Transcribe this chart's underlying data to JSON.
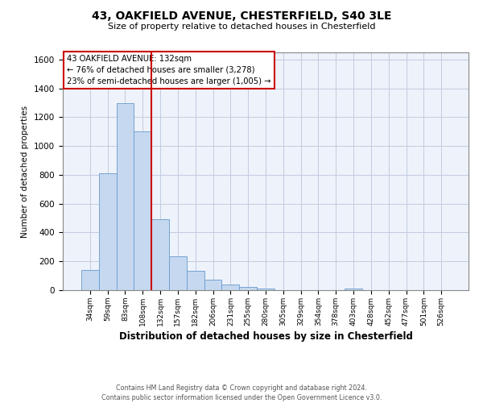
{
  "title": "43, OAKFIELD AVENUE, CHESTERFIELD, S40 3LE",
  "subtitle": "Size of property relative to detached houses in Chesterfield",
  "xlabel": "Distribution of detached houses by size in Chesterfield",
  "ylabel": "Number of detached properties",
  "bin_labels": [
    "34sqm",
    "59sqm",
    "83sqm",
    "108sqm",
    "132sqm",
    "157sqm",
    "182sqm",
    "206sqm",
    "231sqm",
    "255sqm",
    "280sqm",
    "305sqm",
    "329sqm",
    "354sqm",
    "378sqm",
    "403sqm",
    "428sqm",
    "452sqm",
    "477sqm",
    "501sqm",
    "526sqm"
  ],
  "bar_values": [
    140,
    810,
    1295,
    1100,
    490,
    235,
    135,
    75,
    40,
    22,
    12,
    0,
    0,
    0,
    0,
    10,
    0,
    0,
    0,
    0,
    0
  ],
  "bar_color": "#c5d8f0",
  "bar_edge_color": "#6699cc",
  "vline_index": 4,
  "vline_color": "#cc0000",
  "ylim": [
    0,
    1650
  ],
  "yticks": [
    0,
    200,
    400,
    600,
    800,
    1000,
    1200,
    1400,
    1600
  ],
  "annotation_line1": "43 OAKFIELD AVENUE: 132sqm",
  "annotation_line2": "← 76% of detached houses are smaller (3,278)",
  "annotation_line3": "23% of semi-detached houses are larger (1,005) →",
  "footer_line1": "Contains HM Land Registry data © Crown copyright and database right 2024.",
  "footer_line2": "Contains public sector information licensed under the Open Government Licence v3.0.",
  "bg_color": "#eef2fa",
  "grid_color": "#c0cce0"
}
